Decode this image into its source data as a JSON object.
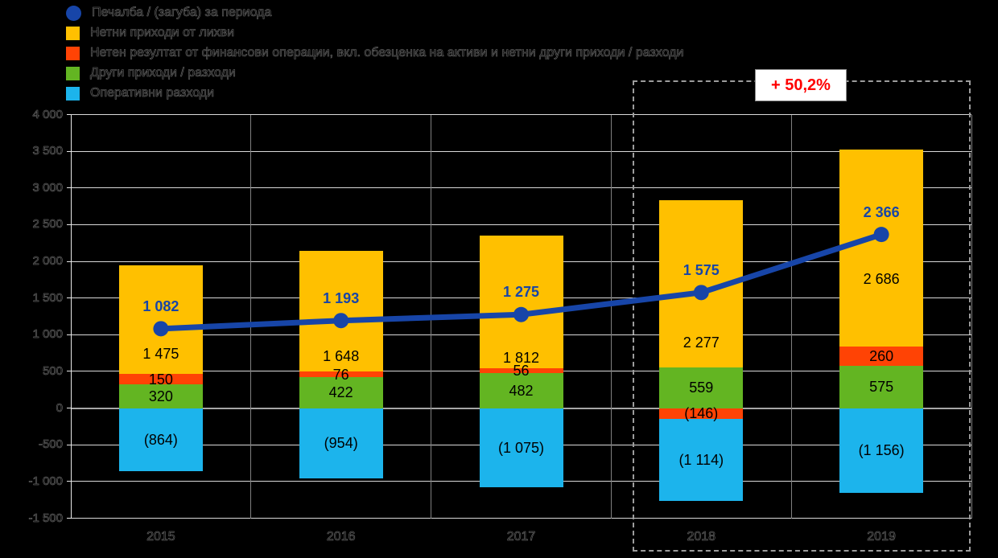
{
  "legend": {
    "items": [
      {
        "label": "Печалба / (загуба) за периода",
        "marker": "circle",
        "color": "#1745A8"
      },
      {
        "label": "Нетни приходи от лихви",
        "marker": "square",
        "color": "#FFC000"
      },
      {
        "label": "Нетен резултат от финансови операции, вкл. обезценка на активи и нетни други приходи / разходи",
        "marker": "square",
        "color": "#FF4305"
      },
      {
        "label": "Други приходи / разходи",
        "marker": "square",
        "color": "#63B522"
      },
      {
        "label": "Оперативни разходи",
        "marker": "square",
        "color": "#1CB4EC"
      }
    ]
  },
  "chart_data": {
    "type": "bar",
    "subtype": "stacked-bars-with-line-overlay",
    "title": "",
    "xlabel": "",
    "ylabel": "",
    "categories": [
      "2015",
      "2016",
      "2017",
      "2018",
      "2019"
    ],
    "series": [
      {
        "name": "Нетни приходи от лихви",
        "color": "#FFC000",
        "values": [
          1475,
          1648,
          1812,
          2277,
          2686
        ],
        "labels": [
          "1 475",
          "1 648",
          "1 812",
          "2 277",
          "2 686"
        ]
      },
      {
        "name": "Нетен резултат от финансови операции, вкл. обезценка на активи и нетни други приходи / разходи",
        "color": "#FF4305",
        "values": [
          150,
          76,
          56,
          -146,
          260
        ],
        "labels": [
          "150",
          "76",
          "56",
          "(146)",
          "260"
        ]
      },
      {
        "name": "Други приходи / разходи",
        "color": "#63B522",
        "values": [
          320,
          422,
          482,
          559,
          575
        ],
        "labels": [
          "320",
          "422",
          "482",
          "559",
          "575"
        ]
      },
      {
        "name": "Оперативни разходи",
        "color": "#1CB4EC",
        "values": [
          -864,
          -954,
          -1075,
          -1114,
          -1156
        ],
        "labels": [
          "(864)",
          "(954)",
          "(1 075)",
          "(1 114)",
          "(1 156)"
        ]
      }
    ],
    "line_series": {
      "name": "Печалба / (загуба) за периода",
      "color": "#1745A8",
      "values": [
        1082,
        1193,
        1275,
        1575,
        2366
      ],
      "labels": [
        "1 082",
        "1 193",
        "1 275",
        "1 575",
        "2 366"
      ]
    },
    "ylim": [
      -1500,
      4000
    ],
    "ystep": 500,
    "ytick_labels": [
      "4 000",
      "3 500",
      "3 000",
      "2 500",
      "2 000",
      "1 500",
      "1 000",
      "500",
      "0",
      "-500",
      "-1 000",
      "-1 500"
    ],
    "grid": true,
    "legend_position": "top-left",
    "annotation": {
      "text": "+ 50,2%",
      "color": "#FF0000",
      "applies_to": [
        "2018",
        "2019"
      ]
    }
  }
}
